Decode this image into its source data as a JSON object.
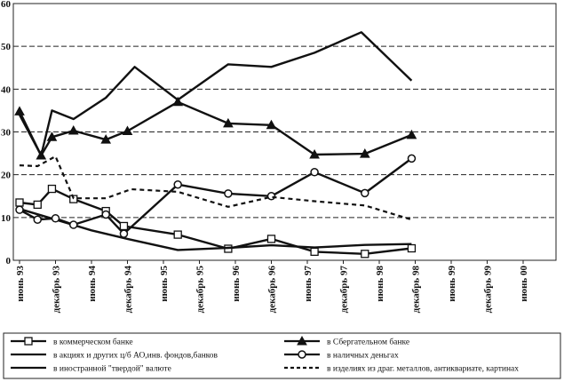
{
  "chart_data": {
    "type": "line",
    "title": "",
    "xlabel": "",
    "ylabel": "",
    "ylim": [
      0,
      60
    ],
    "yticks": [
      0,
      10,
      20,
      30,
      40,
      50,
      60
    ],
    "x_ticks": [
      "июнь 93",
      "декабрь 93",
      "июнь 94",
      "декабрь 94",
      "июнь 95",
      "декабрь 95",
      "июнь 96",
      "декабрь 96",
      "июнь 97",
      "декабрь 97",
      "июнь 98",
      "декабрь 98",
      "июнь 99",
      "декабрь 99",
      "июнь 00"
    ],
    "grid": "horizontal-dashed",
    "legend_position": "bottom",
    "series": [
      {
        "name": "в коммерческом банке",
        "style": "solid",
        "marker": "square",
        "points": [
          [
            0,
            13.5
          ],
          [
            0.5,
            13
          ],
          [
            0.9,
            16.7
          ],
          [
            1.5,
            14.3
          ],
          [
            2.4,
            11.5
          ],
          [
            2.9,
            8
          ],
          [
            4.4,
            6
          ],
          [
            5.8,
            2.7
          ],
          [
            7.0,
            5
          ],
          [
            8.2,
            2
          ],
          [
            9.6,
            1.5
          ],
          [
            10.9,
            2.8
          ]
        ]
      },
      {
        "name": "в акциях и других ц/б АО,инв. фондов,банков",
        "style": "solid",
        "marker": "none",
        "points": [
          [
            0,
            12
          ],
          [
            1.0,
            9.5
          ],
          [
            2.0,
            7
          ],
          [
            3.0,
            5
          ],
          [
            4.4,
            2.4
          ],
          [
            5.8,
            2.9
          ],
          [
            7.0,
            3.5
          ],
          [
            8.2,
            3
          ],
          [
            9.6,
            3.6
          ],
          [
            10.9,
            3.8
          ]
        ]
      },
      {
        "name": "в иностранной \"твердой\" валюте",
        "style": "solid",
        "marker": "none",
        "points": [
          [
            0,
            34
          ],
          [
            0.6,
            24.5
          ],
          [
            0.9,
            35
          ],
          [
            1.5,
            33
          ],
          [
            2.4,
            38
          ],
          [
            3.2,
            45.2
          ],
          [
            4.4,
            37.5
          ],
          [
            5.8,
            45.8
          ],
          [
            7.0,
            45.2
          ],
          [
            8.2,
            48.5
          ],
          [
            9.5,
            53.3
          ],
          [
            10.9,
            42
          ]
        ]
      },
      {
        "name": "в Сбергательном банке",
        "style": "solid",
        "marker": "triangle",
        "points": [
          [
            0,
            34.8
          ],
          [
            0.6,
            24.5
          ],
          [
            0.9,
            28.8
          ],
          [
            1.5,
            30.3
          ],
          [
            2.4,
            28.2
          ],
          [
            3.0,
            30.2
          ],
          [
            4.4,
            37
          ],
          [
            5.8,
            32
          ],
          [
            7.0,
            31.6
          ],
          [
            8.2,
            24.7
          ],
          [
            9.6,
            24.9
          ],
          [
            10.9,
            29.3
          ]
        ]
      },
      {
        "name": "в наличных деньгах",
        "style": "solid",
        "marker": "circle",
        "points": [
          [
            0,
            11.8
          ],
          [
            0.5,
            9.5
          ],
          [
            1.0,
            9.8
          ],
          [
            1.5,
            8.3
          ],
          [
            2.4,
            10.7
          ],
          [
            2.9,
            6.2
          ],
          [
            4.4,
            17.7
          ],
          [
            5.8,
            15.6
          ],
          [
            7.0,
            15
          ],
          [
            8.2,
            20.6
          ],
          [
            9.6,
            15.7
          ],
          [
            10.9,
            23.8
          ]
        ]
      },
      {
        "name": "в изделиях из драг. металлов, антиквариате, картинах",
        "style": "dashed",
        "marker": "none",
        "points": [
          [
            0,
            22.2
          ],
          [
            0.5,
            22
          ],
          [
            1.0,
            24.3
          ],
          [
            1.5,
            14.5
          ],
          [
            2.4,
            14.5
          ],
          [
            3.1,
            16.6
          ],
          [
            4.4,
            16
          ],
          [
            5.8,
            12.5
          ],
          [
            7.0,
            14.8
          ],
          [
            8.2,
            13.8
          ],
          [
            9.6,
            12.8
          ],
          [
            10.9,
            9.5
          ]
        ]
      }
    ]
  }
}
